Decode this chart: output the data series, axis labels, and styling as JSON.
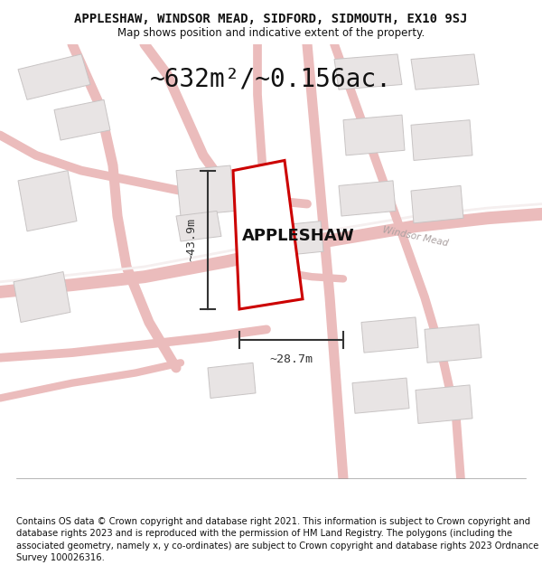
{
  "title": "APPLESHAW, WINDSOR MEAD, SIDFORD, SIDMOUTH, EX10 9SJ",
  "subtitle": "Map shows position and indicative extent of the property.",
  "area_label": "~632m²/~0.156ac.",
  "property_name": "APPLESHAW",
  "width_label": "~28.7m",
  "height_label": "~43.9m",
  "footer": "Contains OS data © Crown copyright and database right 2021. This information is subject to Crown copyright and database rights 2023 and is reproduced with the permission of HM Land Registry. The polygons (including the associated geometry, namely x, y co-ordinates) are subject to Crown copyright and database rights 2023 Ordnance Survey 100026316.",
  "map_bg": "#f7f4f4",
  "road_color": "#ebbcbc",
  "road_fill": "#f5efef",
  "building_color": "#e8e4e4",
  "building_edge": "#c8c4c4",
  "plot_fill": "#ffffff",
  "plot_edge": "#cc0000",
  "dim_color": "#333333",
  "road_label_color": "#aaa0a0",
  "road_label": "Windsor Mead",
  "title_fontsize": 10,
  "subtitle_fontsize": 8.5,
  "area_fontsize": 20,
  "property_fontsize": 13,
  "dim_fontsize": 9.5,
  "footer_fontsize": 7.2
}
